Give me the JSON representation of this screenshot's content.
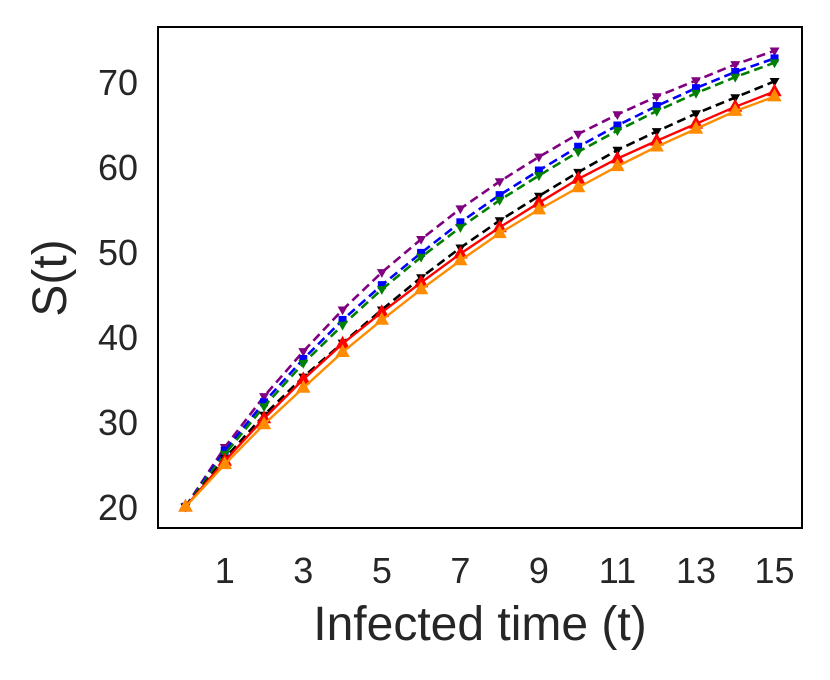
{
  "chart_data": {
    "type": "line",
    "title": "",
    "xlabel": "Infected time (t)",
    "ylabel": "S(t)",
    "xlim": [
      -0.7,
      15.7
    ],
    "ylim": [
      17.5,
      76.5
    ],
    "xticks": [
      1,
      3,
      5,
      7,
      9,
      11,
      13,
      15
    ],
    "yticks": [
      20,
      30,
      40,
      50,
      60,
      70
    ],
    "grid": false,
    "legend": "none",
    "x": [
      0,
      1,
      2,
      3,
      4,
      5,
      6,
      7,
      8,
      9,
      10,
      11,
      12,
      13,
      14,
      15
    ],
    "series": [
      {
        "color": "#800080",
        "dash": true,
        "marker": "tri_down",
        "values": [
          20,
          27,
          33,
          38.3,
          43.2,
          47.6,
          51.5,
          55.1,
          58.3,
          61.2,
          63.9,
          66.2,
          68.3,
          70.2,
          72.1,
          73.7
        ]
      },
      {
        "color": "#0000ff",
        "dash": true,
        "marker": "square",
        "values": [
          20,
          26.6,
          32.3,
          37.4,
          42,
          46.1,
          49.9,
          53.5,
          56.7,
          59.6,
          62.4,
          64.9,
          67.2,
          69.3,
          71.2,
          72.8
        ]
      },
      {
        "color": "#008000",
        "dash": true,
        "marker": "tri_down",
        "values": [
          20,
          26.2,
          31.8,
          36.9,
          41.4,
          45.6,
          49.4,
          52.9,
          56.1,
          59,
          61.8,
          64.3,
          66.6,
          68.7,
          70.6,
          72.3
        ]
      },
      {
        "color": "#000000",
        "dash": true,
        "marker": "tri_down",
        "values": [
          20,
          25.7,
          30.8,
          35.3,
          39.3,
          43.2,
          47,
          50.5,
          53.7,
          56.6,
          59.4,
          62,
          64.2,
          66.3,
          68.2,
          70.1
        ]
      },
      {
        "color": "#ff0000",
        "dash": false,
        "marker": "tri_up",
        "values": [
          20,
          25.4,
          30.4,
          35,
          39.2,
          42.9,
          46.4,
          49.8,
          52.9,
          55.8,
          58.6,
          61,
          63.1,
          65.1,
          67.1,
          68.9
        ]
      },
      {
        "color": "#ff8c00",
        "dash": false,
        "marker": "tri_up",
        "values": [
          20,
          25,
          29.7,
          34,
          38.2,
          42,
          45.6,
          49,
          52.2,
          55,
          57.6,
          60.1,
          62.4,
          64.5,
          66.6,
          68.3
        ]
      }
    ]
  }
}
